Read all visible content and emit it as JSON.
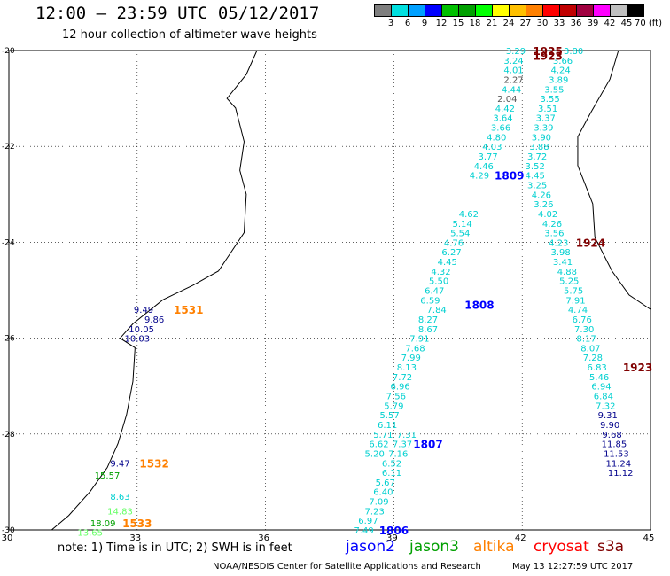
{
  "title": "12:00 – 23:59 UTC 05/12/2017",
  "subtitle": "12 hour collection of altimeter wave heights",
  "color_scale": {
    "labels": [
      "3",
      "6",
      "9",
      "12",
      "15",
      "18",
      "21",
      "24",
      "27",
      "30",
      "33",
      "36",
      "39",
      "42",
      "45",
      "70 (ft)"
    ],
    "colors": [
      "#7f7f7f",
      "#00e0e0",
      "#00a0ff",
      "#0000ff",
      "#00c000",
      "#00a000",
      "#00ff00",
      "#ffff00",
      "#ffc000",
      "#ff8000",
      "#ff0000",
      "#c00000",
      "#a00040",
      "#ff00ff",
      "#c0c0c0",
      "#000000"
    ]
  },
  "axes": {
    "lon_labels": [
      "30",
      "33",
      "36",
      "39",
      "42",
      "45"
    ],
    "lat_labels": [
      "-20",
      "-22",
      "-24",
      "-26",
      "-28",
      "-30"
    ],
    "lon_range": [
      30,
      45
    ],
    "lat_range": [
      -30,
      -20
    ]
  },
  "note": "note: 1) Time is in UTC; 2) SWH is in feet",
  "legend": [
    {
      "name": "jason2",
      "color": "#0000ff"
    },
    {
      "name": "jason3",
      "color": "#00a000"
    },
    {
      "name": "altika",
      "color": "#ff8000"
    },
    {
      "name": "cryosat",
      "color": "#ff0000"
    },
    {
      "name": "s3a",
      "color": "#800000"
    }
  ],
  "footer_left": "NOAA/NESDIS Center for Satellite Applications and Research",
  "footer_right": "May 13 12:27:59 UTC 2017",
  "tracks": [
    {
      "satellite": "jason2",
      "time": "1531",
      "time_color": "#ff8000",
      "time_lon": 34.2,
      "time_lat": -25.4,
      "points": [
        {
          "lon": 33.15,
          "lat": -25.4,
          "v": "9.49",
          "c": "#00008b"
        },
        {
          "lon": 33.4,
          "lat": -25.6,
          "v": "9.86",
          "c": "#00008b"
        },
        {
          "lon": 33.1,
          "lat": -25.8,
          "v": "10.05",
          "c": "#00008b"
        },
        {
          "lon": 33.0,
          "lat": -26.0,
          "v": "10.03",
          "c": "#00008b"
        }
      ]
    },
    {
      "satellite": "jason2",
      "time": "1532",
      "time_color": "#ff8000",
      "time_lon": 33.4,
      "time_lat": -28.6,
      "points": [
        {
          "lon": 32.6,
          "lat": -28.6,
          "v": "9.47",
          "c": "#00008b"
        },
        {
          "lon": 32.3,
          "lat": -28.85,
          "v": "15.57",
          "c": "#00a000"
        },
        {
          "lon": 32.6,
          "lat": -29.3,
          "v": "8.63",
          "c": "#00d0d0"
        },
        {
          "lon": 32.6,
          "lat": -29.6,
          "v": "14.83",
          "c": "#66ff66"
        }
      ]
    },
    {
      "satellite": "jason2",
      "time": "1533",
      "time_color": "#ff8000",
      "time_lon": 33.0,
      "time_lat": -29.85,
      "points": [
        {
          "lon": 32.2,
          "lat": -29.85,
          "v": "18.09",
          "c": "#00a000"
        },
        {
          "lon": 31.9,
          "lat": -30.05,
          "v": "13.65",
          "c": "#66ff66"
        }
      ]
    },
    {
      "satellite": "jason2",
      "time": "1807",
      "time_color": "#0000ff",
      "time_lon": 39.8,
      "time_lat": -28.2,
      "points": [
        {
          "lon": 39.3,
          "lat": -28.0,
          "v": "7.31",
          "c": "#00d0d0"
        },
        {
          "lon": 39.2,
          "lat": -28.2,
          "v": "7.37",
          "c": "#00d0d0"
        },
        {
          "lon": 39.1,
          "lat": -28.4,
          "v": "7.16",
          "c": "#00d0d0"
        },
        {
          "lon": 38.95,
          "lat": -28.6,
          "v": "6.52",
          "c": "#00d0d0"
        },
        {
          "lon": 38.95,
          "lat": -28.8,
          "v": "6.11",
          "c": "#00d0d0"
        },
        {
          "lon": 38.8,
          "lat": -29.0,
          "v": "5.67",
          "c": "#00d0d0"
        },
        {
          "lon": 38.75,
          "lat": -29.2,
          "v": "6.40",
          "c": "#00d0d0"
        },
        {
          "lon": 38.65,
          "lat": -29.4,
          "v": "7.09",
          "c": "#00d0d0"
        },
        {
          "lon": 38.55,
          "lat": -29.6,
          "v": "7.23",
          "c": "#00d0d0"
        },
        {
          "lon": 38.4,
          "lat": -29.8,
          "v": "6.97",
          "c": "#00d0d0"
        },
        {
          "lon": 38.3,
          "lat": -30.0,
          "v": "7.49",
          "c": "#00d0d0"
        }
      ]
    },
    {
      "satellite": "jason2",
      "time": "1806",
      "time_color": "#0000ff",
      "time_lon": 39.0,
      "time_lat": -30.0,
      "points": []
    },
    {
      "satellite": "jason2",
      "time": "1808",
      "time_color": "#0000ff",
      "time_lon": 41.0,
      "time_lat": -25.3,
      "points": [
        {
          "lon": 40.75,
          "lat": -23.4,
          "v": "4.62",
          "c": "#00d0d0"
        },
        {
          "lon": 40.6,
          "lat": -23.6,
          "v": "5.14",
          "c": "#00d0d0"
        },
        {
          "lon": 40.55,
          "lat": -23.8,
          "v": "5.54",
          "c": "#00d0d0"
        },
        {
          "lon": 40.4,
          "lat": -24.0,
          "v": "4.76",
          "c": "#00d0d0"
        },
        {
          "lon": 40.35,
          "lat": -24.2,
          "v": "6.27",
          "c": "#00d0d0"
        },
        {
          "lon": 40.25,
          "lat": -24.4,
          "v": "4.45",
          "c": "#00d0d0"
        },
        {
          "lon": 40.1,
          "lat": -24.6,
          "v": "4.32",
          "c": "#00d0d0"
        },
        {
          "lon": 40.05,
          "lat": -24.8,
          "v": "5.50",
          "c": "#00d0d0"
        },
        {
          "lon": 39.95,
          "lat": -25.0,
          "v": "6.47",
          "c": "#00d0d0"
        },
        {
          "lon": 39.85,
          "lat": -25.2,
          "v": "6.59",
          "c": "#00d0d0"
        },
        {
          "lon": 40.0,
          "lat": -25.4,
          "v": "7.84",
          "c": "#00d0d0"
        },
        {
          "lon": 39.8,
          "lat": -25.6,
          "v": "8.27",
          "c": "#00d0d0"
        },
        {
          "lon": 39.8,
          "lat": -25.8,
          "v": "8.67",
          "c": "#00d0d0"
        },
        {
          "lon": 39.6,
          "lat": -26.0,
          "v": "7.91",
          "c": "#00d0d0"
        },
        {
          "lon": 39.5,
          "lat": -26.2,
          "v": "7.68",
          "c": "#00d0d0"
        },
        {
          "lon": 39.4,
          "lat": -26.4,
          "v": "7.99",
          "c": "#00d0d0"
        },
        {
          "lon": 39.3,
          "lat": -26.6,
          "v": "8.13",
          "c": "#00d0d0"
        },
        {
          "lon": 39.2,
          "lat": -26.8,
          "v": "7.72",
          "c": "#00d0d0"
        },
        {
          "lon": 39.15,
          "lat": -27.0,
          "v": "6.96",
          "c": "#00d0d0"
        },
        {
          "lon": 39.05,
          "lat": -27.2,
          "v": "7.56",
          "c": "#00d0d0"
        },
        {
          "lon": 39.0,
          "lat": -27.4,
          "v": "5.79",
          "c": "#00d0d0"
        },
        {
          "lon": 38.9,
          "lat": -27.6,
          "v": "5.57",
          "c": "#00d0d0"
        },
        {
          "lon": 38.85,
          "lat": -27.8,
          "v": "6.11",
          "c": "#00d0d0"
        },
        {
          "lon": 38.75,
          "lat": -28.0,
          "v": "5.71",
          "c": "#00d0d0"
        },
        {
          "lon": 38.65,
          "lat": -28.2,
          "v": "6.62",
          "c": "#00d0d0"
        },
        {
          "lon": 38.55,
          "lat": -28.4,
          "v": "5.20",
          "c": "#00d0d0"
        }
      ]
    },
    {
      "satellite": "jason2",
      "time": "1809",
      "time_color": "#0000ff",
      "time_lon": 41.7,
      "time_lat": -22.6,
      "points": [
        {
          "lon": 41.85,
          "lat": -20.0,
          "v": "3.29",
          "c": "#00d0d0"
        },
        {
          "lon": 41.8,
          "lat": -20.2,
          "v": "3.24",
          "c": "#00d0d0"
        },
        {
          "lon": 41.8,
          "lat": -20.4,
          "v": "4.01",
          "c": "#00d0d0"
        },
        {
          "lon": 41.8,
          "lat": -20.6,
          "v": "2.27",
          "c": "#555555"
        },
        {
          "lon": 41.75,
          "lat": -20.8,
          "v": "4.44",
          "c": "#00d0d0"
        },
        {
          "lon": 41.65,
          "lat": -21.0,
          "v": "2.04",
          "c": "#555555"
        },
        {
          "lon": 41.6,
          "lat": -21.2,
          "v": "4.42",
          "c": "#00d0d0"
        },
        {
          "lon": 41.55,
          "lat": -21.4,
          "v": "3.64",
          "c": "#00d0d0"
        },
        {
          "lon": 41.5,
          "lat": -21.6,
          "v": "3.66",
          "c": "#00d0d0"
        },
        {
          "lon": 41.4,
          "lat": -21.8,
          "v": "4.80",
          "c": "#00d0d0"
        },
        {
          "lon": 41.3,
          "lat": -22.0,
          "v": "4.03",
          "c": "#00d0d0"
        },
        {
          "lon": 41.2,
          "lat": -22.2,
          "v": "3.77",
          "c": "#00d0d0"
        },
        {
          "lon": 41.1,
          "lat": -22.4,
          "v": "4.46",
          "c": "#00d0d0"
        },
        {
          "lon": 41.0,
          "lat": -22.6,
          "v": "4.29",
          "c": "#00d0d0"
        }
      ]
    },
    {
      "satellite": "s3a",
      "time": "1925",
      "time_color": "#800000",
      "time_lon": 42.6,
      "time_lat": -20.0,
      "points": [
        {
          "lon": 43.2,
          "lat": -20.0,
          "v": "3.80",
          "c": "#00d0d0"
        },
        {
          "lon": 42.95,
          "lat": -20.2,
          "v": "3.66",
          "c": "#00d0d0"
        },
        {
          "lon": 42.9,
          "lat": -20.4,
          "v": "4.24",
          "c": "#00d0d0"
        },
        {
          "lon": 42.85,
          "lat": -20.6,
          "v": "3.89",
          "c": "#00d0d0"
        },
        {
          "lon": 42.75,
          "lat": -20.8,
          "v": "3.55",
          "c": "#00d0d0"
        },
        {
          "lon": 42.65,
          "lat": -21.0,
          "v": "3.55",
          "c": "#00d0d0"
        },
        {
          "lon": 42.6,
          "lat": -21.2,
          "v": "3.51",
          "c": "#00d0d0"
        },
        {
          "lon": 42.55,
          "lat": -21.4,
          "v": "3.37",
          "c": "#00d0d0"
        },
        {
          "lon": 42.5,
          "lat": -21.6,
          "v": "3.39",
          "c": "#00d0d0"
        },
        {
          "lon": 42.45,
          "lat": -21.8,
          "v": "3.90",
          "c": "#00d0d0"
        },
        {
          "lon": 42.4,
          "lat": -22.0,
          "v": "3.88",
          "c": "#00d0d0"
        },
        {
          "lon": 42.35,
          "lat": -22.2,
          "v": "3.72",
          "c": "#00d0d0"
        },
        {
          "lon": 42.3,
          "lat": -22.4,
          "v": "3.52",
          "c": "#00d0d0"
        }
      ]
    },
    {
      "satellite": "s3a",
      "time": "1923",
      "time_color": "#800000",
      "time_lon": 42.6,
      "time_lat": -20.1,
      "points": []
    },
    {
      "satellite": "s3a",
      "time": "1924",
      "time_color": "#800000",
      "time_lon": 43.6,
      "time_lat": -24.0,
      "points": [
        {
          "lon": 42.3,
          "lat": -22.6,
          "v": "4.45",
          "c": "#00d0d0"
        },
        {
          "lon": 42.35,
          "lat": -22.8,
          "v": "3.25",
          "c": "#00d0d0"
        },
        {
          "lon": 42.45,
          "lat": -23.0,
          "v": "4.26",
          "c": "#00d0d0"
        },
        {
          "lon": 42.5,
          "lat": -23.2,
          "v": "3.26",
          "c": "#00d0d0"
        },
        {
          "lon": 42.6,
          "lat": -23.4,
          "v": "4.02",
          "c": "#00d0d0"
        },
        {
          "lon": 42.7,
          "lat": -23.6,
          "v": "4.26",
          "c": "#00d0d0"
        },
        {
          "lon": 42.75,
          "lat": -23.8,
          "v": "3.56",
          "c": "#00d0d0"
        },
        {
          "lon": 42.85,
          "lat": -24.0,
          "v": "4.23",
          "c": "#00d0d0"
        },
        {
          "lon": 42.9,
          "lat": -24.2,
          "v": "3.98",
          "c": "#00d0d0"
        },
        {
          "lon": 42.95,
          "lat": -24.4,
          "v": "3.41",
          "c": "#00d0d0"
        },
        {
          "lon": 43.05,
          "lat": -24.6,
          "v": "4.88",
          "c": "#00d0d0"
        },
        {
          "lon": 43.1,
          "lat": -24.8,
          "v": "5.25",
          "c": "#00d0d0"
        },
        {
          "lon": 43.2,
          "lat": -25.0,
          "v": "5.75",
          "c": "#00d0d0"
        },
        {
          "lon": 43.25,
          "lat": -25.2,
          "v": "7.91",
          "c": "#00d0d0"
        },
        {
          "lon": 43.3,
          "lat": -25.4,
          "v": "4.74",
          "c": "#00d0d0"
        },
        {
          "lon": 43.4,
          "lat": -25.6,
          "v": "6.76",
          "c": "#00d0d0"
        },
        {
          "lon": 43.45,
          "lat": -25.8,
          "v": "7.30",
          "c": "#00d0d0"
        },
        {
          "lon": 43.5,
          "lat": -26.0,
          "v": "8.17",
          "c": "#00d0d0"
        },
        {
          "lon": 43.6,
          "lat": -26.2,
          "v": "8.07",
          "c": "#00d0d0"
        },
        {
          "lon": 43.65,
          "lat": -26.4,
          "v": "7.28",
          "c": "#00d0d0"
        }
      ]
    },
    {
      "satellite": "s3a",
      "time": "1923",
      "time_color": "#800000",
      "time_lon": 44.7,
      "time_lat": -26.6,
      "points": [
        {
          "lon": 43.75,
          "lat": -26.6,
          "v": "6.83",
          "c": "#00d0d0"
        },
        {
          "lon": 43.8,
          "lat": -26.8,
          "v": "5.46",
          "c": "#00d0d0"
        },
        {
          "lon": 43.85,
          "lat": -27.0,
          "v": "6.94",
          "c": "#00d0d0"
        },
        {
          "lon": 43.9,
          "lat": -27.2,
          "v": "6.84",
          "c": "#00d0d0"
        },
        {
          "lon": 43.95,
          "lat": -27.4,
          "v": "7.32",
          "c": "#00d0d0"
        },
        {
          "lon": 44.0,
          "lat": -27.6,
          "v": "9.31",
          "c": "#00008b"
        },
        {
          "lon": 44.05,
          "lat": -27.8,
          "v": "9.90",
          "c": "#00008b"
        },
        {
          "lon": 44.1,
          "lat": -28.0,
          "v": "9.68",
          "c": "#00008b"
        },
        {
          "lon": 44.15,
          "lat": -28.2,
          "v": "11.85",
          "c": "#00008b"
        },
        {
          "lon": 44.2,
          "lat": -28.4,
          "v": "11.53",
          "c": "#00008b"
        },
        {
          "lon": 44.25,
          "lat": -28.6,
          "v": "11.24",
          "c": "#00008b"
        },
        {
          "lon": 44.3,
          "lat": -28.8,
          "v": "11.12",
          "c": "#00008b"
        }
      ]
    }
  ]
}
